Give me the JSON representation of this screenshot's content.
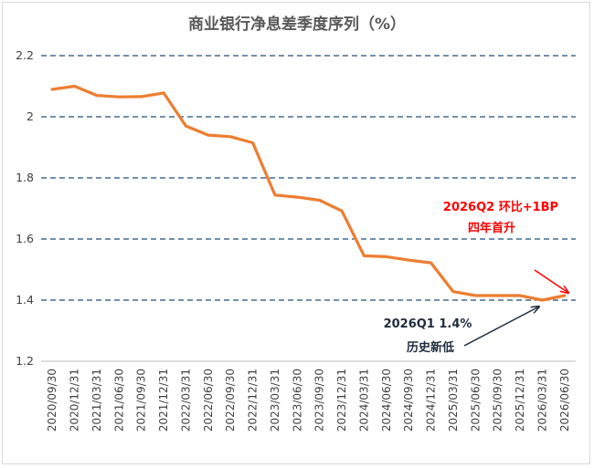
{
  "chart_data": {
    "type": "line",
    "title": "商业银行净息差季度序列（%）",
    "xlabel": "",
    "ylabel": "",
    "ylim": [
      1.2,
      2.2
    ],
    "yticks": [
      "1.2",
      "1.4",
      "1.6",
      "1.8",
      "2",
      "2.2"
    ],
    "grid": "horizontal dashed",
    "x": [
      "2020/09/30",
      "2020/12/31",
      "2021/03/31",
      "2021/06/30",
      "2021/09/30",
      "2021/12/31",
      "2022/03/31",
      "2022/06/30",
      "2022/09/30",
      "2022/12/31",
      "2023/03/31",
      "2023/06/30",
      "2023/09/30",
      "2023/12/31",
      "2024/03/31",
      "2024/06/30",
      "2024/09/30",
      "2024/12/31",
      "2025/03/31",
      "2025/06/30",
      "2025/09/30",
      "2025/12/31",
      "2026/03/31",
      "2026/06/30"
    ],
    "series": [
      {
        "color": "#ed7d31",
        "values": [
          2.09,
          2.1,
          2.07,
          2.065,
          2.066,
          2.078,
          1.97,
          1.94,
          1.935,
          1.915,
          1.744,
          1.737,
          1.727,
          1.692,
          1.545,
          1.542,
          1.531,
          1.522,
          1.428,
          1.415,
          1.415,
          1.415,
          1.4,
          1.415
        ]
      }
    ],
    "annotations": [
      {
        "lines": [
          "2026Q2 环比+1BP",
          "四年首升"
        ],
        "color": "#ff0000",
        "points_to": "2026/06/30"
      },
      {
        "lines": [
          "2026Q1 1.4%",
          "历史新低"
        ],
        "color": "#1f2d3d",
        "points_to": "2026/03/31"
      }
    ]
  }
}
